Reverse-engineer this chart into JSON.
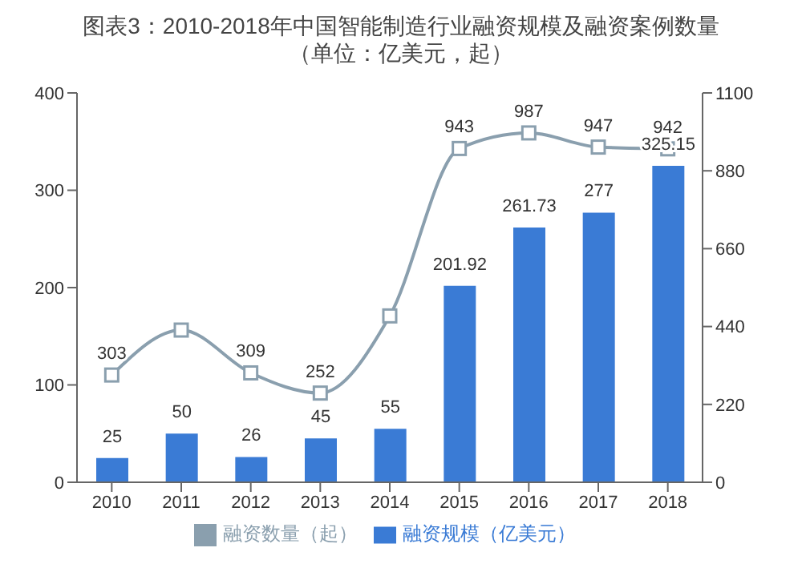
{
  "chart_data": {
    "type": "bar",
    "title": "图表3：2010-2018年中国智能制造行业融资规模及融资案例数量（单位：亿美元，起）",
    "categories": [
      "2010",
      "2011",
      "2012",
      "2013",
      "2014",
      "2015",
      "2016",
      "2017",
      "2018"
    ],
    "series": [
      {
        "name": "融资规模（亿美元）",
        "color": "#3a7bd5",
        "values": [
          25,
          50,
          26,
          45,
          55,
          201.92,
          261.73,
          277,
          325.15
        ],
        "value_labels": [
          "25",
          "50",
          "26",
          "45",
          "55",
          "201.92",
          "261.73",
          "277",
          "325.15"
        ]
      },
      {
        "name": "融资数量（起）",
        "type": "line",
        "axis": "y2",
        "color": "#8a9fae",
        "marker": "square",
        "values": [
          303,
          430,
          309,
          252,
          470,
          943,
          987,
          947,
          942
        ],
        "value_labels": [
          "303",
          null,
          "309",
          "252",
          null,
          "943",
          "987",
          "947",
          "942"
        ]
      }
    ],
    "ylim": [
      0,
      400
    ],
    "yticks": [
      0,
      100,
      200,
      300,
      400
    ],
    "y2lim": [
      0,
      1100
    ],
    "y2ticks": [
      0,
      220,
      440,
      660,
      880,
      1100
    ],
    "grid": false,
    "legend": "bottom"
  }
}
